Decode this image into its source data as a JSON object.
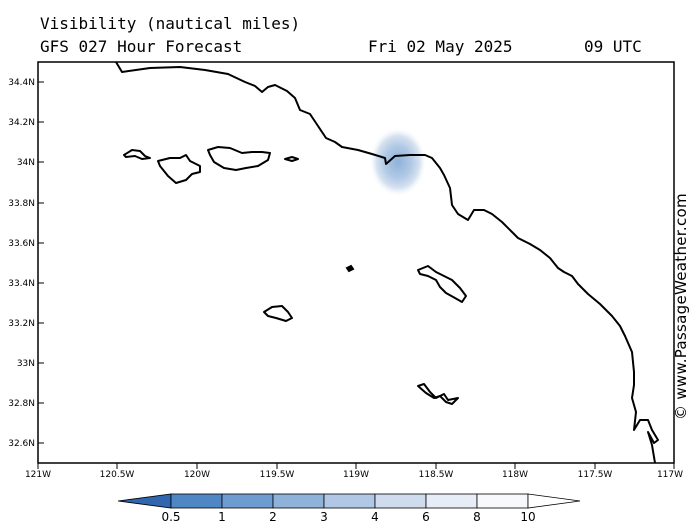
{
  "header": {
    "title": "Visibility (nautical miles)",
    "subtitle": "GFS 027 Hour Forecast",
    "date": "Fri 02 May 2025",
    "time": "09 UTC"
  },
  "watermark": "© www.PassageWeather.com",
  "axes": {
    "lat_labels": [
      "34.4N",
      "34.2N",
      "34N",
      "33.8N",
      "33.6N",
      "33.4N",
      "33.2N",
      "33N",
      "32.8N",
      "32.6N"
    ],
    "lon_labels": [
      "121W",
      "120.5W",
      "120W",
      "119.5W",
      "119W",
      "118.5W",
      "118W",
      "117.5W",
      "117W"
    ]
  },
  "colorbar": {
    "labels": [
      "0.5",
      "1",
      "2",
      "3",
      "4",
      "6",
      "8",
      "10"
    ],
    "colors": [
      "#3a74b8",
      "#4f86c4",
      "#6e9cd0",
      "#8fb2da",
      "#b0c8e5",
      "#cfdcee",
      "#e6edf6",
      "#ffffff"
    ]
  },
  "visibility_patch": {
    "center_lon": -118.73,
    "center_lat": 33.99,
    "min_visibility_nm": 4
  },
  "colors": {
    "land_outline": "#000000",
    "background": "#ffffff",
    "fog": "#8fb2da"
  }
}
